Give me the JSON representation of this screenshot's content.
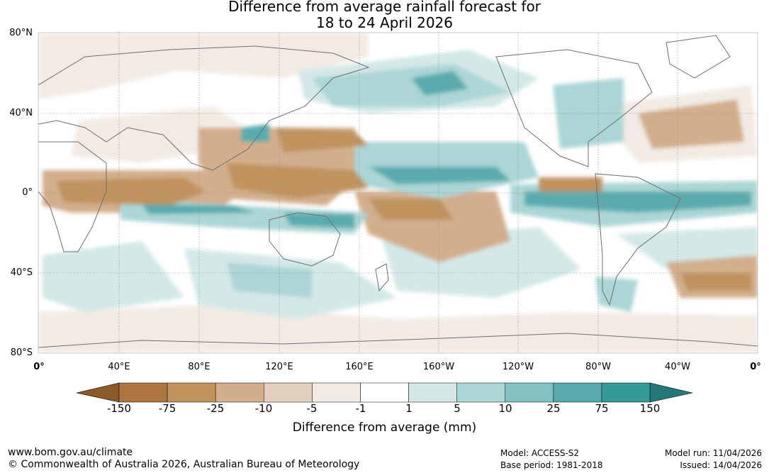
{
  "title": {
    "line1": "Difference from average rainfall forecast for",
    "line2": "18 to 24 April 2026"
  },
  "map": {
    "lat_labels": [
      "80°N",
      "40°N",
      "0°",
      "40°S",
      "80°S"
    ],
    "lon_labels": [
      "0°",
      "40°E",
      "80°E",
      "120°E",
      "160°E",
      "160°W",
      "120°W",
      "80°W",
      "40°W",
      "0°"
    ]
  },
  "colorbar": {
    "title": "Difference from average (mm)",
    "ticks": [
      "-150",
      "-75",
      "-25",
      "-10",
      "-5",
      "-1",
      "1",
      "5",
      "10",
      "25",
      "75",
      "150"
    ],
    "colors": [
      "#ad7540",
      "#c0935f",
      "#d2ae8c",
      "#e3cfbd",
      "#f2ebe5",
      "#ffffff",
      "#d3e8e7",
      "#acd5d5",
      "#84c1c2",
      "#5aabad",
      "#339a98"
    ],
    "end_low": "#8b5a2b",
    "end_high": "#23787a"
  },
  "footer": {
    "website": "www.bom.gov.au/climate",
    "copyright": "© Commonwealth of Australia 2026, Australian Bureau of Meteorology",
    "model": "Model: ACCESS-S2",
    "base_period": "Base period: 1981-2018",
    "model_run": "Model run: 11/04/2026",
    "issued": "Issued: 14/04/2026"
  },
  "palette": {
    "dry": "#c0935f",
    "dry_light": "#d2ae8c",
    "dry_faint": "#f2ebe5",
    "wet": "#5aabad",
    "wet_light": "#acd5d5",
    "wet_faint": "#d3e8e7",
    "coast": "#6e6e6e"
  }
}
